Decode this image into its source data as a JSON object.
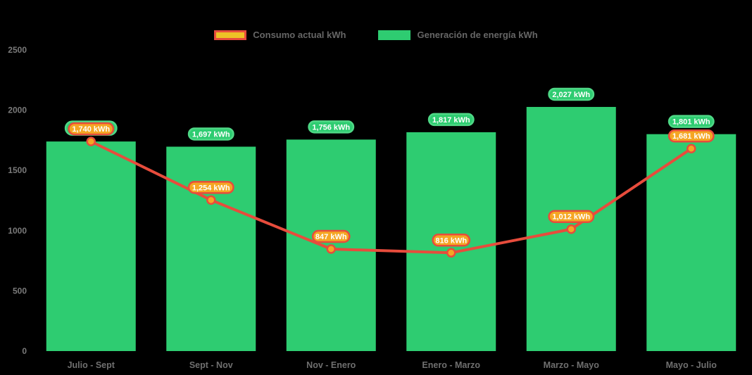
{
  "legend": {
    "items": [
      {
        "label": "Consumo actual kWh",
        "swatch_fill": "#EDC226",
        "swatch_border": "#E74C3C"
      },
      {
        "label": "Generación de energía kWh",
        "swatch_fill": "#2ECC71",
        "swatch_border": "#2ECC71"
      }
    ]
  },
  "colors": {
    "background": "#000000",
    "bar": "#2ECC71",
    "bar_label_fill": "#2ECC71",
    "bar_label_border": "#4FD886",
    "line": "#E74C3C",
    "point_fill": "#F5A623",
    "consumption_label_fill": "#F5A623",
    "consumption_label_border": "#E74C3C",
    "label_text": "#FFFFFF",
    "axis_text": "#7A7A7A",
    "legend_text": "#666666"
  },
  "chart_data": {
    "type": "bar",
    "title": "",
    "xlabel": "",
    "ylabel": "",
    "unit": "kWh",
    "categories": [
      "Julio - Sept",
      "Sept - Nov",
      "Nov - Enero",
      "Enero - Marzo",
      "Marzo - Mayo",
      "Mayo - Julio"
    ],
    "series": [
      {
        "name": "Generación de energía kWh",
        "type": "bar",
        "color": "#2ECC71",
        "values": [
          1740,
          1697,
          1756,
          1817,
          2027,
          1801
        ],
        "labels": [
          "",
          "1,697 kWh",
          "1,756 kWh",
          "1,817 kWh",
          "2,027 kWh",
          "1,801 kWh"
        ],
        "hidden_label_indices": [
          0
        ]
      },
      {
        "name": "Consumo actual kWh",
        "type": "line",
        "color": "#E74C3C",
        "point_color": "#F5A623",
        "values": [
          1740,
          1254,
          847,
          816,
          1012,
          1681
        ],
        "labels": [
          "1,740 kWh",
          "1,254 kWh",
          "847 kWh",
          "816 kWh",
          "1,012 kWh",
          "1,681 kWh"
        ]
      }
    ],
    "ylim": [
      0,
      2500
    ],
    "yticks": [
      0,
      500,
      1000,
      1500,
      2000,
      2500
    ],
    "grid": false,
    "legend_position": "top"
  }
}
